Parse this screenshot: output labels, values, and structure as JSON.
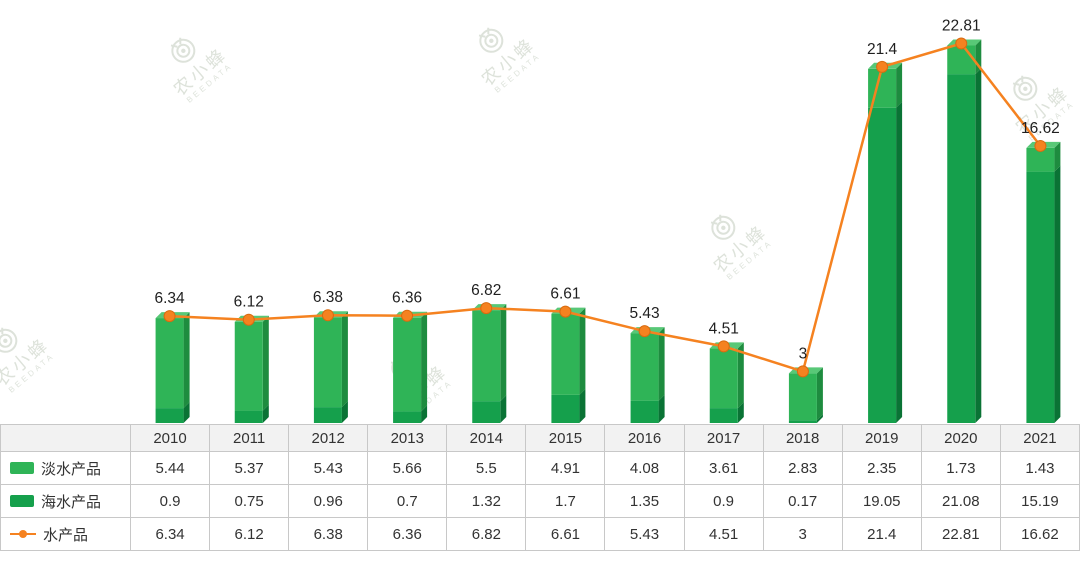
{
  "watermark": {
    "brand": "农小蜂",
    "sub": "BEEDATA"
  },
  "chart_data": {
    "type": "bar",
    "subtype": "3d-stacked-bars-with-total-line",
    "categories": [
      "2010",
      "2011",
      "2012",
      "2013",
      "2014",
      "2015",
      "2016",
      "2017",
      "2018",
      "2019",
      "2020",
      "2021"
    ],
    "series": [
      {
        "name": "淡水产品",
        "type": "bar",
        "stack": "total",
        "stack_position": "top",
        "color": "#2FB457",
        "side_color": "#1E8C3F",
        "top_color": "#58C877",
        "values": [
          5.44,
          5.37,
          5.43,
          5.66,
          5.5,
          4.91,
          4.08,
          3.61,
          2.83,
          2.35,
          1.73,
          1.43
        ]
      },
      {
        "name": "海水产品",
        "type": "bar",
        "stack": "total",
        "stack_position": "bottom",
        "color": "#15A04C",
        "side_color": "#0A7335",
        "values": [
          0.9,
          0.75,
          0.96,
          0.7,
          1.32,
          1.7,
          1.35,
          0.9,
          0.17,
          19.05,
          21.08,
          15.19
        ]
      },
      {
        "name": "水产品",
        "type": "line",
        "color": "#F58220",
        "marker_stroke": "#D96B10",
        "values": [
          6.34,
          6.12,
          6.38,
          6.36,
          6.82,
          6.61,
          5.43,
          4.51,
          3,
          21.4,
          22.81,
          16.62
        ]
      }
    ],
    "value_labels": [
      "6.34",
      "6.12",
      "6.38",
      "6.36",
      "6.82",
      "6.61",
      "5.43",
      "4.51",
      "3",
      "21.4",
      "22.81",
      "16.62"
    ],
    "ylim": [
      0,
      24
    ],
    "grid": false,
    "axes_visible": false,
    "legend_position": "table-left"
  },
  "table": {
    "corner_label": "",
    "header_years": [
      "2010",
      "2011",
      "2012",
      "2013",
      "2014",
      "2015",
      "2016",
      "2017",
      "2018",
      "2019",
      "2020",
      "2021"
    ],
    "rows": [
      {
        "label": "淡水产品",
        "swatch": "bar",
        "color": "#2FB457",
        "values": [
          "5.44",
          "5.37",
          "5.43",
          "5.66",
          "5.5",
          "4.91",
          "4.08",
          "3.61",
          "2.83",
          "2.35",
          "1.73",
          "1.43"
        ]
      },
      {
        "label": "海水产品",
        "swatch": "bar",
        "color": "#15A04C",
        "values": [
          "0.9",
          "0.75",
          "0.96",
          "0.7",
          "1.32",
          "1.7",
          "1.35",
          "0.9",
          "0.17",
          "19.05",
          "21.08",
          "15.19"
        ]
      },
      {
        "label": "水产品",
        "swatch": "line",
        "color": "#F58220",
        "values": [
          "6.34",
          "6.12",
          "6.38",
          "6.36",
          "6.82",
          "6.61",
          "5.43",
          "4.51",
          "3",
          "21.4",
          "22.81",
          "16.62"
        ]
      }
    ]
  },
  "style": {
    "label_color": "#1f1f1f",
    "border_color": "#c8c8c8",
    "header_bg": "#f2f2f2"
  }
}
